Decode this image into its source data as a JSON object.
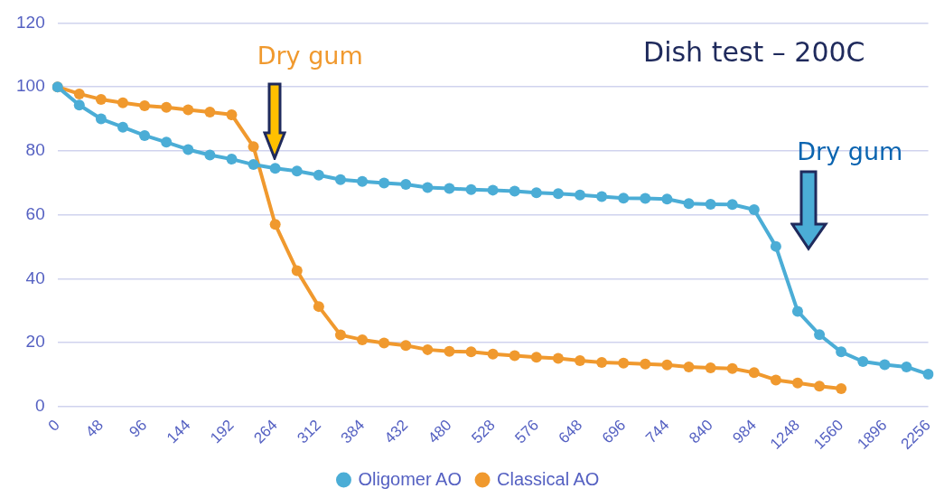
{
  "chart_data": {
    "type": "line",
    "title": "Dish test – 200C",
    "categories": [
      "0",
      null,
      "48",
      null,
      "96",
      null,
      "144",
      null,
      "192",
      null,
      "264",
      null,
      "312",
      null,
      "384",
      null,
      "432",
      null,
      "480",
      null,
      "528",
      null,
      "576",
      null,
      "648",
      null,
      "696",
      null,
      "744",
      null,
      "840",
      null,
      "984",
      null,
      "1248",
      null,
      "1560",
      null,
      "1896",
      null,
      "2256"
    ],
    "series": [
      {
        "name": "Oligomer AO",
        "color": "#4badd6",
        "values": [
          100,
          94.3,
          90.0,
          87.4,
          84.8,
          82.7,
          80.4,
          78.7,
          77.4,
          75.7,
          74.5,
          73.7,
          72.4,
          71.0,
          70.4,
          69.9,
          69.5,
          68.5,
          68.2,
          67.9,
          67.7,
          67.4,
          66.9,
          66.6,
          66.2,
          65.7,
          65.2,
          65.1,
          64.9,
          63.5,
          63.3,
          63.2,
          61.6,
          50.1,
          29.8,
          22.5,
          17.1,
          14.1,
          13.1,
          12.4,
          10.1
        ]
      },
      {
        "name": "Classical AO",
        "color": "#f0992e",
        "values": [
          100,
          97.8,
          96.1,
          95.0,
          94.1,
          93.6,
          92.8,
          92.1,
          91.3,
          81.3,
          57.0,
          42.5,
          31.3,
          22.4,
          20.9,
          19.9,
          19.1,
          17.8,
          17.3,
          17.1,
          16.4,
          15.9,
          15.4,
          15.1,
          14.4,
          13.8,
          13.6,
          13.3,
          13.0,
          12.4,
          12.1,
          11.9,
          10.6,
          8.3,
          7.4,
          6.4,
          5.6,
          null,
          null,
          null,
          null
        ]
      }
    ],
    "annotations": [
      "Dry gum",
      "Dry gum"
    ],
    "ylim": [
      0,
      120
    ],
    "yticks": [
      0,
      20,
      40,
      60,
      80,
      100,
      120
    ],
    "grid": "y",
    "legend": "bottom",
    "marker": "circle",
    "line_style": "solid"
  }
}
